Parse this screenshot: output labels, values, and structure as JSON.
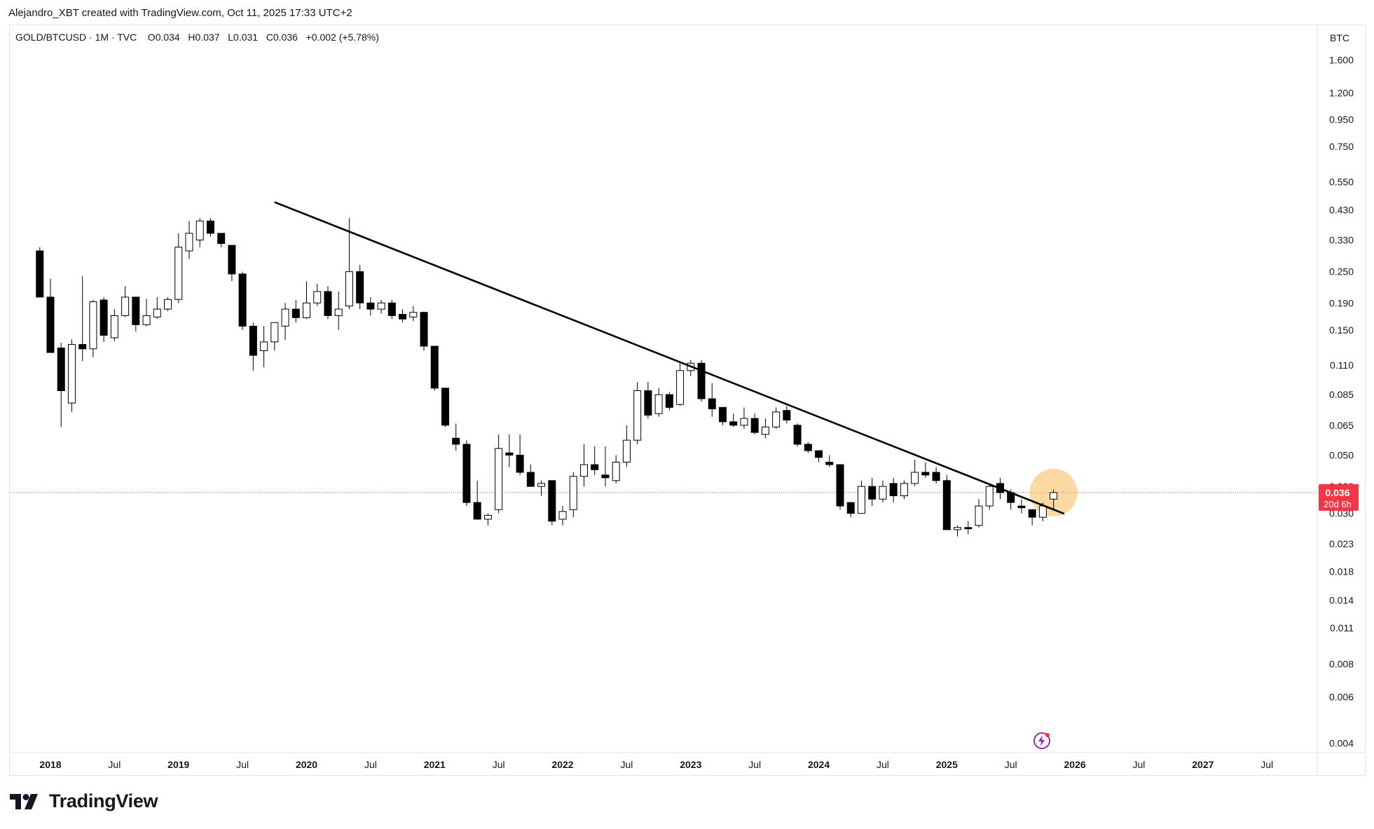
{
  "header": {
    "attribution": "Alejandro_XBT created with TradingView.com, Oct 11, 2025 17:33 UTC+2"
  },
  "legend": {
    "symbol": "GOLD/BTCUSD",
    "interval": "1M",
    "source": "TVC",
    "open_label": "O",
    "open": "0.034",
    "high_label": "H",
    "high": "0.037",
    "low_label": "L",
    "low": "0.031",
    "close_label": "C",
    "close": "0.036",
    "change": "+0.002 (+5.78%)"
  },
  "price_axis": {
    "currency": "BTC",
    "current_price_label": "0.036",
    "countdown_label": "20d 6h",
    "badge_color": "#f23645"
  },
  "footer": {
    "logo_text": "TradingView"
  },
  "colors": {
    "candle_up_fill": "#ffffff",
    "candle_down_fill": "#000000",
    "candle_border": "#000000",
    "trendline": "#000000",
    "highlight": "#f7b955",
    "price_line": "#f23645"
  },
  "chart_data": {
    "type": "candlestick",
    "title": "GOLD/BTCUSD · 1M · TVC",
    "scale": "log",
    "ylim": [
      0.004,
      2.0
    ],
    "x_range": [
      "2017-12",
      "2027-10"
    ],
    "y_ticks": [
      "1.600",
      "1.200",
      "0.950",
      "0.750",
      "0.550",
      "0.430",
      "0.330",
      "0.250",
      "0.190",
      "0.150",
      "0.110",
      "0.085",
      "0.065",
      "0.050",
      "0.038",
      "0.030",
      "0.023",
      "0.018",
      "0.014",
      "0.011",
      "0.008",
      "0.006",
      "0.004"
    ],
    "x_ticks": [
      {
        "label": "2018",
        "date": "2018-01"
      },
      {
        "label": "Jul",
        "date": "2018-07"
      },
      {
        "label": "2019",
        "date": "2019-01"
      },
      {
        "label": "Jul",
        "date": "2019-07"
      },
      {
        "label": "2020",
        "date": "2020-01"
      },
      {
        "label": "Jul",
        "date": "2020-07"
      },
      {
        "label": "2021",
        "date": "2021-01"
      },
      {
        "label": "Jul",
        "date": "2021-07"
      },
      {
        "label": "2022",
        "date": "2022-01"
      },
      {
        "label": "Jul",
        "date": "2022-07"
      },
      {
        "label": "2023",
        "date": "2023-01"
      },
      {
        "label": "Jul",
        "date": "2023-07"
      },
      {
        "label": "2024",
        "date": "2024-01"
      },
      {
        "label": "Jul",
        "date": "2024-07"
      },
      {
        "label": "2025",
        "date": "2025-01"
      },
      {
        "label": "Jul",
        "date": "2025-07"
      },
      {
        "label": "2026",
        "date": "2026-01"
      },
      {
        "label": "Jul",
        "date": "2026-07"
      },
      {
        "label": "2027",
        "date": "2027-01"
      },
      {
        "label": "Jul",
        "date": "2027-07"
      }
    ],
    "candles": [
      {
        "date": "2017-12",
        "o": 0.3,
        "h": 0.31,
        "l": 0.2,
        "c": 0.2
      },
      {
        "date": "2018-01",
        "o": 0.2,
        "h": 0.235,
        "l": 0.123,
        "c": 0.123
      },
      {
        "date": "2018-02",
        "o": 0.128,
        "h": 0.134,
        "l": 0.064,
        "c": 0.088
      },
      {
        "date": "2018-03",
        "o": 0.079,
        "h": 0.138,
        "l": 0.073,
        "c": 0.132
      },
      {
        "date": "2018-04",
        "o": 0.132,
        "h": 0.24,
        "l": 0.114,
        "c": 0.127
      },
      {
        "date": "2018-05",
        "o": 0.127,
        "h": 0.195,
        "l": 0.118,
        "c": 0.192
      },
      {
        "date": "2018-06",
        "o": 0.195,
        "h": 0.2,
        "l": 0.135,
        "c": 0.143
      },
      {
        "date": "2018-07",
        "o": 0.14,
        "h": 0.18,
        "l": 0.136,
        "c": 0.17
      },
      {
        "date": "2018-08",
        "o": 0.17,
        "h": 0.22,
        "l": 0.168,
        "c": 0.2
      },
      {
        "date": "2018-09",
        "o": 0.2,
        "h": 0.2,
        "l": 0.148,
        "c": 0.157
      },
      {
        "date": "2018-10",
        "o": 0.157,
        "h": 0.197,
        "l": 0.155,
        "c": 0.17
      },
      {
        "date": "2018-11",
        "o": 0.168,
        "h": 0.2,
        "l": 0.165,
        "c": 0.18
      },
      {
        "date": "2018-12",
        "o": 0.18,
        "h": 0.2,
        "l": 0.177,
        "c": 0.196
      },
      {
        "date": "2019-01",
        "o": 0.196,
        "h": 0.35,
        "l": 0.19,
        "c": 0.31
      },
      {
        "date": "2019-02",
        "o": 0.3,
        "h": 0.39,
        "l": 0.28,
        "c": 0.35
      },
      {
        "date": "2019-03",
        "o": 0.33,
        "h": 0.4,
        "l": 0.31,
        "c": 0.39
      },
      {
        "date": "2019-04",
        "o": 0.39,
        "h": 0.4,
        "l": 0.34,
        "c": 0.35
      },
      {
        "date": "2019-05",
        "o": 0.35,
        "h": 0.35,
        "l": 0.31,
        "c": 0.32
      },
      {
        "date": "2019-06",
        "o": 0.315,
        "h": 0.315,
        "l": 0.23,
        "c": 0.245
      },
      {
        "date": "2019-07",
        "o": 0.245,
        "h": 0.25,
        "l": 0.15,
        "c": 0.155
      },
      {
        "date": "2019-08",
        "o": 0.155,
        "h": 0.16,
        "l": 0.105,
        "c": 0.12
      },
      {
        "date": "2019-09",
        "o": 0.125,
        "h": 0.155,
        "l": 0.108,
        "c": 0.135
      },
      {
        "date": "2019-10",
        "o": 0.135,
        "h": 0.16,
        "l": 0.125,
        "c": 0.16
      },
      {
        "date": "2019-11",
        "o": 0.155,
        "h": 0.19,
        "l": 0.137,
        "c": 0.18
      },
      {
        "date": "2019-12",
        "o": 0.18,
        "h": 0.195,
        "l": 0.16,
        "c": 0.167
      },
      {
        "date": "2020-01",
        "o": 0.167,
        "h": 0.23,
        "l": 0.165,
        "c": 0.19
      },
      {
        "date": "2020-02",
        "o": 0.19,
        "h": 0.225,
        "l": 0.185,
        "c": 0.21
      },
      {
        "date": "2020-03",
        "o": 0.21,
        "h": 0.22,
        "l": 0.165,
        "c": 0.17
      },
      {
        "date": "2020-04",
        "o": 0.17,
        "h": 0.21,
        "l": 0.15,
        "c": 0.18
      },
      {
        "date": "2020-05",
        "o": 0.185,
        "h": 0.4,
        "l": 0.18,
        "c": 0.25
      },
      {
        "date": "2020-06",
        "o": 0.25,
        "h": 0.265,
        "l": 0.18,
        "c": 0.19
      },
      {
        "date": "2020-07",
        "o": 0.19,
        "h": 0.2,
        "l": 0.17,
        "c": 0.18
      },
      {
        "date": "2020-08",
        "o": 0.18,
        "h": 0.195,
        "l": 0.173,
        "c": 0.19
      },
      {
        "date": "2020-09",
        "o": 0.19,
        "h": 0.195,
        "l": 0.165,
        "c": 0.17
      },
      {
        "date": "2020-10",
        "o": 0.172,
        "h": 0.18,
        "l": 0.16,
        "c": 0.165
      },
      {
        "date": "2020-11",
        "o": 0.168,
        "h": 0.185,
        "l": 0.162,
        "c": 0.175
      },
      {
        "date": "2020-12",
        "o": 0.175,
        "h": 0.176,
        "l": 0.125,
        "c": 0.13
      },
      {
        "date": "2021-01",
        "o": 0.13,
        "h": 0.13,
        "l": 0.088,
        "c": 0.09
      },
      {
        "date": "2021-02",
        "o": 0.09,
        "h": 0.09,
        "l": 0.064,
        "c": 0.065
      },
      {
        "date": "2021-03",
        "o": 0.058,
        "h": 0.066,
        "l": 0.052,
        "c": 0.055
      },
      {
        "date": "2021-04",
        "o": 0.055,
        "h": 0.057,
        "l": 0.032,
        "c": 0.033
      },
      {
        "date": "2021-05",
        "o": 0.033,
        "h": 0.04,
        "l": 0.0285,
        "c": 0.0285
      },
      {
        "date": "2021-06",
        "o": 0.0285,
        "h": 0.03,
        "l": 0.027,
        "c": 0.0295
      },
      {
        "date": "2021-07",
        "o": 0.031,
        "h": 0.06,
        "l": 0.03,
        "c": 0.053
      },
      {
        "date": "2021-08",
        "o": 0.051,
        "h": 0.06,
        "l": 0.045,
        "c": 0.05
      },
      {
        "date": "2021-09",
        "o": 0.05,
        "h": 0.06,
        "l": 0.042,
        "c": 0.043
      },
      {
        "date": "2021-10",
        "o": 0.043,
        "h": 0.046,
        "l": 0.038,
        "c": 0.038
      },
      {
        "date": "2021-11",
        "o": 0.038,
        "h": 0.04,
        "l": 0.035,
        "c": 0.039
      },
      {
        "date": "2021-12",
        "o": 0.04,
        "h": 0.04,
        "l": 0.027,
        "c": 0.028
      },
      {
        "date": "2022-01",
        "o": 0.0285,
        "h": 0.032,
        "l": 0.027,
        "c": 0.0305
      },
      {
        "date": "2022-02",
        "o": 0.031,
        "h": 0.043,
        "l": 0.029,
        "c": 0.0415
      },
      {
        "date": "2022-03",
        "o": 0.0415,
        "h": 0.055,
        "l": 0.038,
        "c": 0.046
      },
      {
        "date": "2022-04",
        "o": 0.046,
        "h": 0.054,
        "l": 0.042,
        "c": 0.044
      },
      {
        "date": "2022-05",
        "o": 0.042,
        "h": 0.054,
        "l": 0.038,
        "c": 0.041
      },
      {
        "date": "2022-06",
        "o": 0.04,
        "h": 0.05,
        "l": 0.039,
        "c": 0.047
      },
      {
        "date": "2022-07",
        "o": 0.047,
        "h": 0.065,
        "l": 0.045,
        "c": 0.057
      },
      {
        "date": "2022-08",
        "o": 0.057,
        "h": 0.095,
        "l": 0.055,
        "c": 0.088
      },
      {
        "date": "2022-09",
        "o": 0.088,
        "h": 0.095,
        "l": 0.069,
        "c": 0.071
      },
      {
        "date": "2022-10",
        "o": 0.072,
        "h": 0.09,
        "l": 0.07,
        "c": 0.085
      },
      {
        "date": "2022-11",
        "o": 0.085,
        "h": 0.087,
        "l": 0.074,
        "c": 0.076
      },
      {
        "date": "2022-12",
        "o": 0.078,
        "h": 0.113,
        "l": 0.077,
        "c": 0.105
      },
      {
        "date": "2023-01",
        "o": 0.105,
        "h": 0.115,
        "l": 0.1,
        "c": 0.112
      },
      {
        "date": "2023-02",
        "o": 0.112,
        "h": 0.115,
        "l": 0.08,
        "c": 0.082
      },
      {
        "date": "2023-03",
        "o": 0.082,
        "h": 0.094,
        "l": 0.07,
        "c": 0.075
      },
      {
        "date": "2023-04",
        "o": 0.076,
        "h": 0.076,
        "l": 0.065,
        "c": 0.067
      },
      {
        "date": "2023-05",
        "o": 0.067,
        "h": 0.072,
        "l": 0.064,
        "c": 0.065
      },
      {
        "date": "2023-06",
        "o": 0.065,
        "h": 0.076,
        "l": 0.063,
        "c": 0.069
      },
      {
        "date": "2023-07",
        "o": 0.069,
        "h": 0.072,
        "l": 0.06,
        "c": 0.061
      },
      {
        "date": "2023-08",
        "o": 0.06,
        "h": 0.069,
        "l": 0.058,
        "c": 0.064
      },
      {
        "date": "2023-09",
        "o": 0.064,
        "h": 0.076,
        "l": 0.063,
        "c": 0.073
      },
      {
        "date": "2023-10",
        "o": 0.074,
        "h": 0.077,
        "l": 0.066,
        "c": 0.068
      },
      {
        "date": "2023-11",
        "o": 0.065,
        "h": 0.066,
        "l": 0.054,
        "c": 0.055
      },
      {
        "date": "2023-12",
        "o": 0.055,
        "h": 0.056,
        "l": 0.051,
        "c": 0.052
      },
      {
        "date": "2024-01",
        "o": 0.052,
        "h": 0.052,
        "l": 0.047,
        "c": 0.049
      },
      {
        "date": "2024-02",
        "o": 0.047,
        "h": 0.05,
        "l": 0.045,
        "c": 0.046
      },
      {
        "date": "2024-03",
        "o": 0.046,
        "h": 0.046,
        "l": 0.031,
        "c": 0.032
      },
      {
        "date": "2024-04",
        "o": 0.033,
        "h": 0.033,
        "l": 0.029,
        "c": 0.03
      },
      {
        "date": "2024-05",
        "o": 0.03,
        "h": 0.04,
        "l": 0.03,
        "c": 0.038
      },
      {
        "date": "2024-06",
        "o": 0.038,
        "h": 0.041,
        "l": 0.032,
        "c": 0.034
      },
      {
        "date": "2024-07",
        "o": 0.034,
        "h": 0.04,
        "l": 0.033,
        "c": 0.038
      },
      {
        "date": "2024-08",
        "o": 0.039,
        "h": 0.041,
        "l": 0.033,
        "c": 0.035
      },
      {
        "date": "2024-09",
        "o": 0.035,
        "h": 0.04,
        "l": 0.034,
        "c": 0.039
      },
      {
        "date": "2024-10",
        "o": 0.039,
        "h": 0.048,
        "l": 0.038,
        "c": 0.043
      },
      {
        "date": "2024-11",
        "o": 0.043,
        "h": 0.047,
        "l": 0.041,
        "c": 0.042
      },
      {
        "date": "2024-12",
        "o": 0.043,
        "h": 0.045,
        "l": 0.039,
        "c": 0.04
      },
      {
        "date": "2025-01",
        "o": 0.04,
        "h": 0.042,
        "l": 0.026,
        "c": 0.026
      },
      {
        "date": "2025-02",
        "o": 0.026,
        "h": 0.027,
        "l": 0.0245,
        "c": 0.0265
      },
      {
        "date": "2025-03",
        "o": 0.0265,
        "h": 0.028,
        "l": 0.025,
        "c": 0.0262
      },
      {
        "date": "2025-04",
        "o": 0.027,
        "h": 0.034,
        "l": 0.0265,
        "c": 0.032
      },
      {
        "date": "2025-05",
        "o": 0.032,
        "h": 0.039,
        "l": 0.031,
        "c": 0.038
      },
      {
        "date": "2025-06",
        "o": 0.039,
        "h": 0.041,
        "l": 0.034,
        "c": 0.036
      },
      {
        "date": "2025-07",
        "o": 0.036,
        "h": 0.037,
        "l": 0.031,
        "c": 0.033
      },
      {
        "date": "2025-08",
        "o": 0.032,
        "h": 0.034,
        "l": 0.03,
        "c": 0.0315
      },
      {
        "date": "2025-09",
        "o": 0.031,
        "h": 0.031,
        "l": 0.027,
        "c": 0.029
      },
      {
        "date": "2025-10",
        "o": 0.029,
        "h": 0.033,
        "l": 0.028,
        "c": 0.032
      },
      {
        "date": "2025-11",
        "o": 0.034,
        "h": 0.037,
        "l": 0.031,
        "c": 0.036
      }
    ],
    "trendline": {
      "start": {
        "date": "2019-10",
        "price": 0.46
      },
      "end": {
        "date": "2025-12",
        "price": 0.0299
      }
    },
    "highlight": {
      "date": "2025-11",
      "price": 0.036
    },
    "current_price": 0.036
  }
}
